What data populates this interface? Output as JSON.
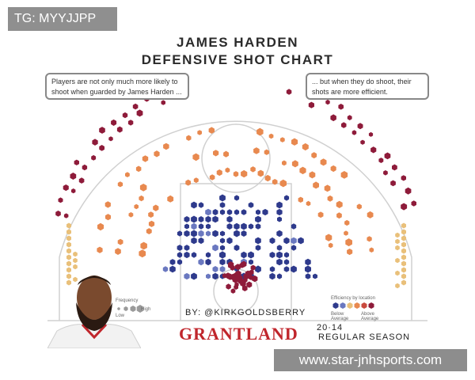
{
  "top_tag": "TG: MYYJJPP",
  "bottom_tag": "www.star-jnhsports.com",
  "header": {
    "line1": "JAMES HARDEN",
    "line2": "DEFENSIVE SHOT CHART"
  },
  "callouts": {
    "left": "Players are not only much more likely to shoot when guarded by James Harden ...",
    "right": "... but when they do shoot, their shots are more efficient."
  },
  "credit": "BY: @KIRKGOLDSBERRY",
  "brand": "GRANTLAND",
  "season": {
    "year": "20·14",
    "label": "REGULAR SEASON"
  },
  "legend": {
    "frequency_label": "Frequency",
    "low": "Low",
    "high": "High",
    "efficiency_label": "Efficiency by location",
    "below": "Below Average",
    "above": "Above Average",
    "colors": [
      "#2e3a8c",
      "#6a78c0",
      "#e9c07a",
      "#e8894f",
      "#c94a3e",
      "#8e1b3a"
    ]
  },
  "chart_data": {
    "type": "scatter",
    "title": "JAMES HARDEN DEFENSIVE SHOT CHART",
    "xlabel": "",
    "ylabel": "",
    "encoding": "hexagon color = efficiency by location (below average to above average); hexagon size = frequency",
    "categories": [
      "below average (dark blue)",
      "average / mid (orange)",
      "above average (dark red)"
    ],
    "series": [
      {
        "name": "",
        "color": "#8e1b3a",
        "zones": [
          "corner 3 left",
          "wing 3 left",
          "top of key 3",
          "wing 3 right",
          "corner 3 right",
          "restricted area"
        ]
      },
      {
        "name": "",
        "color": "#e8894f",
        "zones": [
          "mid-range left",
          "mid-range top",
          "mid-range right",
          "short corner"
        ]
      },
      {
        "name": "",
        "color": "#2e3a8c",
        "zones": [
          "paint",
          "free throw line area"
        ]
      }
    ]
  }
}
